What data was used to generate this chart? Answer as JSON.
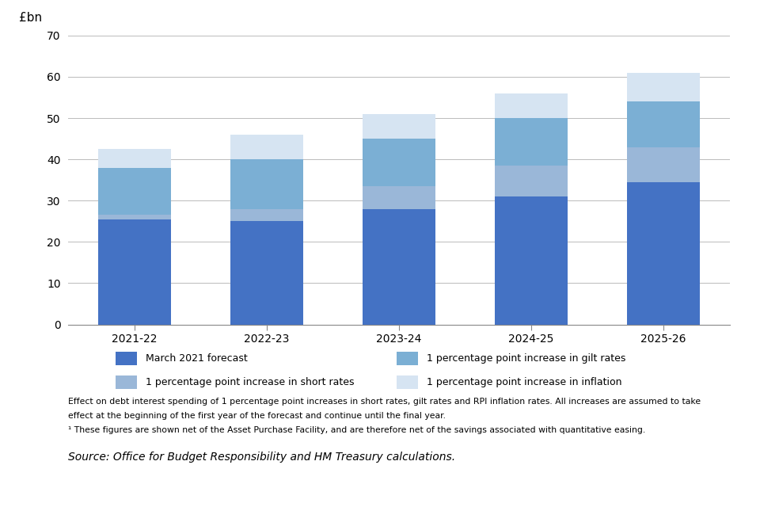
{
  "categories": [
    "2021-22",
    "2022-23",
    "2023-24",
    "2024-25",
    "2025-26"
  ],
  "march_forecast": [
    25.5,
    25.0,
    28.0,
    31.0,
    34.5
  ],
  "short_rates": [
    1.0,
    3.0,
    5.5,
    7.5,
    8.5
  ],
  "gilt_rates": [
    11.5,
    12.0,
    11.5,
    11.5,
    11.0
  ],
  "inflation": [
    4.5,
    6.0,
    6.0,
    6.0,
    7.0
  ],
  "colors": {
    "march_forecast": "#4472C4",
    "short_rates": "#9AB7D8",
    "gilt_rates": "#7BAFD4",
    "inflation": "#D6E4F2"
  },
  "ylabel": "£bn",
  "ylim": [
    0,
    70
  ],
  "yticks": [
    0,
    10,
    20,
    30,
    40,
    50,
    60,
    70
  ],
  "legend_labels": {
    "march_forecast": "March 2021 forecast",
    "short_rates": "1 percentage point increase in short rates",
    "gilt_rates": "1 percentage point increase in gilt rates",
    "inflation": "1 percentage point increase in inflation"
  },
  "footnote1": "Effect on debt interest spending of 1 percentage point increases in short rates, gilt rates and RPI inflation rates. All increases are assumed to take",
  "footnote2": "effect at the beginning of the first year of the forecast and continue until the final year.",
  "footnote3": "¹ These figures are shown net of the Asset Purchase Facility, and are therefore net of the savings associated with quantitative easing.",
  "source": "Source: Office for Budget Responsibility and HM Treasury calculations.",
  "bar_width": 0.55,
  "background_color": "#ffffff",
  "grid_color": "#bbbbbb"
}
